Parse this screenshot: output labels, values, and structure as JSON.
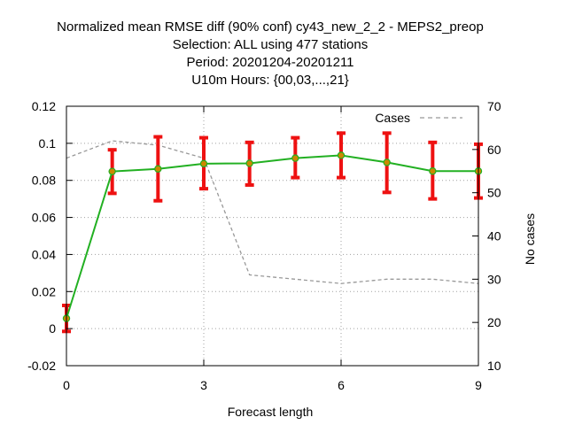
{
  "chart_data": {
    "type": "line",
    "title_lines": [
      "Normalized mean RMSE diff (90% conf) cy43_new_2_2 - MEPS2_preop",
      "Selection: ALL using   477 stations",
      "Period: 20201204-20201211",
      "U10m   Hours: {00,03,...,21}"
    ],
    "xlabel": "Forecast length",
    "ylabel_right": "No cases",
    "x_ticks": [
      "0",
      "3",
      "6",
      "9"
    ],
    "x_tick_values": [
      0,
      3,
      6,
      9
    ],
    "y_ticks": [
      "-0.02",
      "0",
      "0.02",
      "0.04",
      "0.06",
      "0.08",
      "0.1",
      "0.12"
    ],
    "y_tick_values": [
      -0.02,
      0,
      0.02,
      0.04,
      0.06,
      0.08,
      0.1,
      0.12
    ],
    "y2_ticks": [
      "10",
      "20",
      "30",
      "40",
      "50",
      "60",
      "70"
    ],
    "y2_tick_values": [
      10,
      20,
      30,
      40,
      50,
      60,
      70
    ],
    "xlim": [
      0,
      9
    ],
    "ylim": [
      -0.02,
      0.12
    ],
    "y2lim": [
      10,
      70
    ],
    "grid": true,
    "legend_position": "top-right",
    "series": [
      {
        "kind": "rmse-diff",
        "color": "#22b022",
        "marker_color": "#cc8800",
        "x": [
          0,
          1,
          2,
          3,
          4,
          5,
          6,
          7,
          8,
          9
        ],
        "values": [
          0.0055,
          0.0848,
          0.0862,
          0.089,
          0.0892,
          0.092,
          0.0935,
          0.0897,
          0.085,
          0.085
        ],
        "err_low": [
          -0.0015,
          0.073,
          0.069,
          0.0755,
          0.0775,
          0.0815,
          0.0815,
          0.0735,
          0.07,
          0.0705
        ],
        "err_high": [
          0.0125,
          0.0965,
          0.1035,
          0.103,
          0.1005,
          0.103,
          0.1055,
          0.1055,
          0.1005,
          0.0995
        ],
        "err_color": "#ee1111"
      },
      {
        "name": "Cases",
        "axis": "right",
        "color": "#999999",
        "x": [
          0,
          1,
          2,
          3,
          4,
          5,
          6,
          7,
          8,
          9
        ],
        "values": [
          58.0,
          62.0,
          61.0,
          58.0,
          31.0,
          30.0,
          29.0,
          30.0,
          30.0,
          29.0
        ]
      }
    ]
  }
}
